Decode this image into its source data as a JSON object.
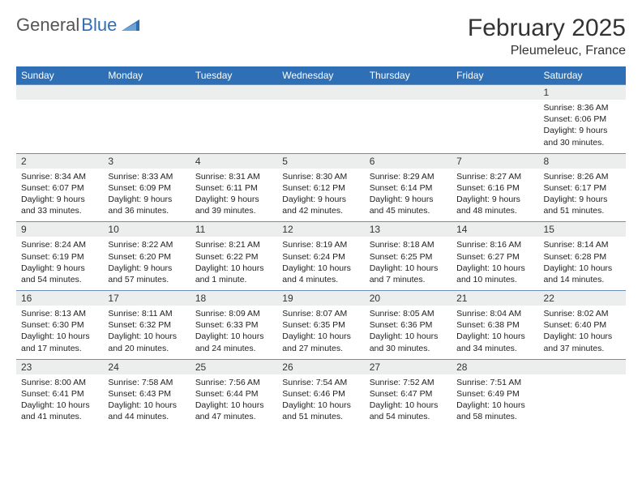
{
  "logo": {
    "text_gray": "General",
    "text_blue": "Blue"
  },
  "title": "February 2025",
  "location": "Pleumeleuc, France",
  "header_bg": "#2e6fb5",
  "daynum_bg": "#eceded",
  "border_color": "#6a8fb8",
  "weekdays": [
    "Sunday",
    "Monday",
    "Tuesday",
    "Wednesday",
    "Thursday",
    "Friday",
    "Saturday"
  ],
  "weeks": [
    [
      null,
      null,
      null,
      null,
      null,
      null,
      {
        "n": "1",
        "sunrise": "8:36 AM",
        "sunset": "6:06 PM",
        "daylight": "9 hours and 30 minutes."
      }
    ],
    [
      {
        "n": "2",
        "sunrise": "8:34 AM",
        "sunset": "6:07 PM",
        "daylight": "9 hours and 33 minutes."
      },
      {
        "n": "3",
        "sunrise": "8:33 AM",
        "sunset": "6:09 PM",
        "daylight": "9 hours and 36 minutes."
      },
      {
        "n": "4",
        "sunrise": "8:31 AM",
        "sunset": "6:11 PM",
        "daylight": "9 hours and 39 minutes."
      },
      {
        "n": "5",
        "sunrise": "8:30 AM",
        "sunset": "6:12 PM",
        "daylight": "9 hours and 42 minutes."
      },
      {
        "n": "6",
        "sunrise": "8:29 AM",
        "sunset": "6:14 PM",
        "daylight": "9 hours and 45 minutes."
      },
      {
        "n": "7",
        "sunrise": "8:27 AM",
        "sunset": "6:16 PM",
        "daylight": "9 hours and 48 minutes."
      },
      {
        "n": "8",
        "sunrise": "8:26 AM",
        "sunset": "6:17 PM",
        "daylight": "9 hours and 51 minutes."
      }
    ],
    [
      {
        "n": "9",
        "sunrise": "8:24 AM",
        "sunset": "6:19 PM",
        "daylight": "9 hours and 54 minutes."
      },
      {
        "n": "10",
        "sunrise": "8:22 AM",
        "sunset": "6:20 PM",
        "daylight": "9 hours and 57 minutes."
      },
      {
        "n": "11",
        "sunrise": "8:21 AM",
        "sunset": "6:22 PM",
        "daylight": "10 hours and 1 minute."
      },
      {
        "n": "12",
        "sunrise": "8:19 AM",
        "sunset": "6:24 PM",
        "daylight": "10 hours and 4 minutes."
      },
      {
        "n": "13",
        "sunrise": "8:18 AM",
        "sunset": "6:25 PM",
        "daylight": "10 hours and 7 minutes."
      },
      {
        "n": "14",
        "sunrise": "8:16 AM",
        "sunset": "6:27 PM",
        "daylight": "10 hours and 10 minutes."
      },
      {
        "n": "15",
        "sunrise": "8:14 AM",
        "sunset": "6:28 PM",
        "daylight": "10 hours and 14 minutes."
      }
    ],
    [
      {
        "n": "16",
        "sunrise": "8:13 AM",
        "sunset": "6:30 PM",
        "daylight": "10 hours and 17 minutes."
      },
      {
        "n": "17",
        "sunrise": "8:11 AM",
        "sunset": "6:32 PM",
        "daylight": "10 hours and 20 minutes."
      },
      {
        "n": "18",
        "sunrise": "8:09 AM",
        "sunset": "6:33 PM",
        "daylight": "10 hours and 24 minutes."
      },
      {
        "n": "19",
        "sunrise": "8:07 AM",
        "sunset": "6:35 PM",
        "daylight": "10 hours and 27 minutes."
      },
      {
        "n": "20",
        "sunrise": "8:05 AM",
        "sunset": "6:36 PM",
        "daylight": "10 hours and 30 minutes."
      },
      {
        "n": "21",
        "sunrise": "8:04 AM",
        "sunset": "6:38 PM",
        "daylight": "10 hours and 34 minutes."
      },
      {
        "n": "22",
        "sunrise": "8:02 AM",
        "sunset": "6:40 PM",
        "daylight": "10 hours and 37 minutes."
      }
    ],
    [
      {
        "n": "23",
        "sunrise": "8:00 AM",
        "sunset": "6:41 PM",
        "daylight": "10 hours and 41 minutes."
      },
      {
        "n": "24",
        "sunrise": "7:58 AM",
        "sunset": "6:43 PM",
        "daylight": "10 hours and 44 minutes."
      },
      {
        "n": "25",
        "sunrise": "7:56 AM",
        "sunset": "6:44 PM",
        "daylight": "10 hours and 47 minutes."
      },
      {
        "n": "26",
        "sunrise": "7:54 AM",
        "sunset": "6:46 PM",
        "daylight": "10 hours and 51 minutes."
      },
      {
        "n": "27",
        "sunrise": "7:52 AM",
        "sunset": "6:47 PM",
        "daylight": "10 hours and 54 minutes."
      },
      {
        "n": "28",
        "sunrise": "7:51 AM",
        "sunset": "6:49 PM",
        "daylight": "10 hours and 58 minutes."
      },
      null
    ]
  ],
  "labels": {
    "sunrise_prefix": "Sunrise: ",
    "sunset_prefix": "Sunset: ",
    "daylight_prefix": "Daylight: "
  }
}
